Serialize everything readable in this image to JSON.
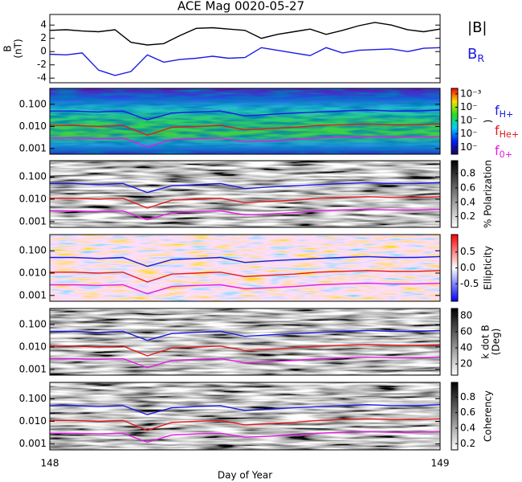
{
  "chart_data": [
    {
      "type": "line",
      "title": "ACE Mag 0020-05-27",
      "ylabel": [
        "B",
        "(nT)"
      ],
      "xlim": [
        148,
        149
      ],
      "ylim": [
        -4.7,
        5.6
      ],
      "yticks": [
        -4,
        -2,
        0,
        2,
        4
      ],
      "log": false,
      "x": [
        148.0,
        148.042,
        148.083,
        148.125,
        148.167,
        148.208,
        148.25,
        148.292,
        148.333,
        148.375,
        148.417,
        148.458,
        148.5,
        148.542,
        148.583,
        148.625,
        148.667,
        148.708,
        148.75,
        148.792,
        148.833,
        148.875,
        148.917,
        148.958,
        149.0
      ],
      "series": [
        {
          "name": "|B|",
          "color": "#000000",
          "values": [
            3.2,
            3.3,
            3.1,
            3.0,
            3.3,
            1.4,
            1.0,
            1.2,
            2.4,
            3.5,
            3.6,
            3.4,
            3.2,
            2.0,
            2.6,
            3.0,
            3.4,
            2.6,
            3.2,
            3.9,
            4.4,
            4.0,
            3.3,
            3.0,
            3.4
          ]
        },
        {
          "name": "B",
          "sub": "R",
          "color": "#1a1ae6",
          "values": [
            -0.4,
            -0.5,
            -0.2,
            -2.8,
            -3.6,
            -3.0,
            -0.5,
            -1.6,
            -1.2,
            -1.0,
            -0.7,
            -1.0,
            -0.9,
            0.6,
            0.2,
            -0.2,
            -0.6,
            0.6,
            -0.2,
            0.2,
            0.3,
            0.4,
            0.0,
            0.5,
            0.6
          ]
        }
      ]
    },
    {
      "type": "line",
      "xlim": [
        148,
        149
      ],
      "ylim": [
        0.00055,
        0.53
      ],
      "log": true,
      "yticks": [
        {
          "value": 0.001,
          "label": "0.001"
        },
        {
          "value": 0.01,
          "label": "0.010"
        },
        {
          "value": 0.1,
          "label": "0.100"
        }
      ],
      "x": [
        148.0,
        148.0625,
        148.125,
        148.1875,
        148.25,
        148.3125,
        148.375,
        148.4375,
        148.5,
        148.5625,
        148.625,
        148.6875,
        148.75,
        148.8125,
        148.875,
        148.9375,
        149.0
      ],
      "series": [
        {
          "name": "f",
          "sub": "H+",
          "color": "#1a1ae6",
          "values": [
            0.05,
            0.05,
            0.045,
            0.05,
            0.02,
            0.04,
            0.045,
            0.05,
            0.03,
            0.035,
            0.04,
            0.045,
            0.05,
            0.055,
            0.05,
            0.05,
            0.055
          ]
        },
        {
          "name": "f",
          "sub": "He+",
          "color": "#e61a1a",
          "values": [
            0.011,
            0.011,
            0.01,
            0.011,
            0.004,
            0.009,
            0.01,
            0.011,
            0.007,
            0.008,
            0.009,
            0.011,
            0.012,
            0.013,
            0.012,
            0.012,
            0.013
          ]
        },
        {
          "name": "f",
          "sub": "0+",
          "color": "#e61ae6",
          "values": [
            0.003,
            0.003,
            0.0028,
            0.003,
            0.0012,
            0.0025,
            0.0028,
            0.003,
            0.002,
            0.0022,
            0.0025,
            0.003,
            0.0033,
            0.0035,
            0.0033,
            0.0033,
            0.0035
          ]
        }
      ],
      "colorbar": {
        "colormap": "rainbow",
        "log": true,
        "ylim": [
          3e-08,
          0.0026
        ],
        "label": [
          ")"
        ],
        "yticks": [
          {
            "value": 0.001,
            "label": "10⁻³"
          },
          {
            "value": 0.0001,
            "label": "10⁻"
          },
          {
            "value": 1e-05,
            "label": "10⁻"
          },
          {
            "value": 1e-06,
            "label": "10⁻"
          },
          {
            "value": 1e-07,
            "label": "10⁻"
          }
        ]
      }
    },
    {
      "type": "line",
      "xlim": [
        148,
        149
      ],
      "ylim": [
        0.00055,
        0.53
      ],
      "log": true,
      "yticks": [
        {
          "value": 0.001,
          "label": "0.001"
        },
        {
          "value": 0.01,
          "label": "0.010"
        },
        {
          "value": 0.1,
          "label": "0.100"
        }
      ],
      "x": [
        148.0,
        148.0625,
        148.125,
        148.1875,
        148.25,
        148.3125,
        148.375,
        148.4375,
        148.5,
        148.5625,
        148.625,
        148.6875,
        148.75,
        148.8125,
        148.875,
        148.9375,
        149.0
      ],
      "series": [
        {
          "color": "#1a1ae6",
          "values": [
            0.05,
            0.05,
            0.045,
            0.05,
            0.02,
            0.04,
            0.045,
            0.05,
            0.03,
            0.035,
            0.04,
            0.045,
            0.05,
            0.055,
            0.05,
            0.05,
            0.055
          ]
        },
        {
          "color": "#e61a1a",
          "values": [
            0.011,
            0.011,
            0.01,
            0.011,
            0.004,
            0.009,
            0.01,
            0.011,
            0.007,
            0.008,
            0.009,
            0.011,
            0.012,
            0.013,
            0.012,
            0.012,
            0.013
          ]
        },
        {
          "color": "#e61ae6",
          "values": [
            0.003,
            0.003,
            0.0028,
            0.003,
            0.0012,
            0.0025,
            0.0028,
            0.003,
            0.002,
            0.0022,
            0.0025,
            0.003,
            0.0033,
            0.0035,
            0.0033,
            0.0033,
            0.0035
          ]
        }
      ],
      "colorbar": {
        "colormap": "gray",
        "log": false,
        "ylim": [
          0.05,
          0.98
        ],
        "label": [
          "% Polarization"
        ],
        "yticks": [
          0.2,
          0.4,
          0.6,
          0.8
        ]
      }
    },
    {
      "type": "line",
      "xlim": [
        148,
        149
      ],
      "ylim": [
        0.00055,
        0.53
      ],
      "log": true,
      "yticks": [
        {
          "value": 0.001,
          "label": "0.001"
        },
        {
          "value": 0.01,
          "label": "0.010"
        },
        {
          "value": 0.1,
          "label": "0.100"
        }
      ],
      "x": [
        148.0,
        148.0625,
        148.125,
        148.1875,
        148.25,
        148.3125,
        148.375,
        148.4375,
        148.5,
        148.5625,
        148.625,
        148.6875,
        148.75,
        148.8125,
        148.875,
        148.9375,
        149.0
      ],
      "series": [
        {
          "color": "#1a1ae6",
          "values": [
            0.05,
            0.05,
            0.045,
            0.05,
            0.02,
            0.04,
            0.045,
            0.05,
            0.03,
            0.035,
            0.04,
            0.045,
            0.05,
            0.055,
            0.05,
            0.05,
            0.055
          ]
        },
        {
          "color": "#e61a1a",
          "values": [
            0.011,
            0.011,
            0.01,
            0.011,
            0.004,
            0.009,
            0.01,
            0.011,
            0.007,
            0.008,
            0.009,
            0.011,
            0.012,
            0.013,
            0.012,
            0.012,
            0.013
          ]
        },
        {
          "color": "#e61ae6",
          "values": [
            0.003,
            0.003,
            0.0028,
            0.003,
            0.0012,
            0.0025,
            0.0028,
            0.003,
            0.002,
            0.0022,
            0.0025,
            0.003,
            0.0033,
            0.0035,
            0.0033,
            0.0033,
            0.0035
          ]
        }
      ],
      "colorbar": {
        "colormap": "bwr",
        "log": false,
        "ylim": [
          -1.05,
          1.05
        ],
        "label": [
          "Ellipticity"
        ],
        "yticks": [
          -0.5,
          {
            "value": 0,
            "label": "0.0"
          },
          0.5
        ]
      }
    },
    {
      "type": "line",
      "xlim": [
        148,
        149
      ],
      "ylim": [
        0.00055,
        0.53
      ],
      "log": true,
      "yticks": [
        {
          "value": 0.001,
          "label": "0.001"
        },
        {
          "value": 0.01,
          "label": "0.010"
        },
        {
          "value": 0.1,
          "label": "0.100"
        }
      ],
      "x": [
        148.0,
        148.0625,
        148.125,
        148.1875,
        148.25,
        148.3125,
        148.375,
        148.4375,
        148.5,
        148.5625,
        148.625,
        148.6875,
        148.75,
        148.8125,
        148.875,
        148.9375,
        149.0
      ],
      "series": [
        {
          "color": "#1a1ae6",
          "values": [
            0.05,
            0.05,
            0.045,
            0.05,
            0.02,
            0.04,
            0.045,
            0.05,
            0.03,
            0.035,
            0.04,
            0.045,
            0.05,
            0.055,
            0.05,
            0.05,
            0.055
          ]
        },
        {
          "color": "#e61a1a",
          "values": [
            0.011,
            0.011,
            0.01,
            0.011,
            0.004,
            0.009,
            0.01,
            0.011,
            0.007,
            0.008,
            0.009,
            0.011,
            0.012,
            0.013,
            0.012,
            0.012,
            0.013
          ]
        },
        {
          "color": "#e61ae6",
          "values": [
            0.003,
            0.003,
            0.0028,
            0.003,
            0.0012,
            0.0025,
            0.0028,
            0.003,
            0.002,
            0.0022,
            0.0025,
            0.003,
            0.0033,
            0.0035,
            0.0033,
            0.0033,
            0.0035
          ]
        }
      ],
      "colorbar": {
        "colormap": "gray",
        "log": false,
        "ylim": [
          6,
          89
        ],
        "label": [
          "k dot B",
          "(Deg)"
        ],
        "yticks": [
          20,
          40,
          60,
          80
        ]
      }
    },
    {
      "type": "line",
      "xlim": [
        148,
        149
      ],
      "ylim": [
        0.00055,
        0.53
      ],
      "log": true,
      "xlabel": "Day of Year",
      "xticks": [
        148,
        149
      ],
      "yticks": [
        {
          "value": 0.001,
          "label": "0.001"
        },
        {
          "value": 0.01,
          "label": "0.010"
        },
        {
          "value": 0.1,
          "label": "0.100"
        }
      ],
      "x": [
        148.0,
        148.0625,
        148.125,
        148.1875,
        148.25,
        148.3125,
        148.375,
        148.4375,
        148.5,
        148.5625,
        148.625,
        148.6875,
        148.75,
        148.8125,
        148.875,
        148.9375,
        149.0
      ],
      "series": [
        {
          "color": "#1a1ae6",
          "values": [
            0.05,
            0.05,
            0.045,
            0.05,
            0.02,
            0.04,
            0.045,
            0.05,
            0.03,
            0.035,
            0.04,
            0.045,
            0.05,
            0.055,
            0.05,
            0.05,
            0.055
          ]
        },
        {
          "color": "#e61a1a",
          "values": [
            0.011,
            0.011,
            0.01,
            0.011,
            0.004,
            0.009,
            0.01,
            0.011,
            0.007,
            0.008,
            0.009,
            0.011,
            0.012,
            0.013,
            0.012,
            0.012,
            0.013
          ]
        },
        {
          "color": "#e61ae6",
          "values": [
            0.003,
            0.003,
            0.0028,
            0.003,
            0.0012,
            0.0025,
            0.0028,
            0.003,
            0.002,
            0.0022,
            0.0025,
            0.003,
            0.0033,
            0.0035,
            0.0033,
            0.0033,
            0.0035
          ]
        }
      ],
      "colorbar": {
        "colormap": "gray",
        "log": false,
        "ylim": [
          0.12,
          0.99
        ],
        "label": [
          "Coherency"
        ],
        "yticks": [
          0.2,
          0.4,
          0.6,
          0.8
        ]
      }
    }
  ]
}
